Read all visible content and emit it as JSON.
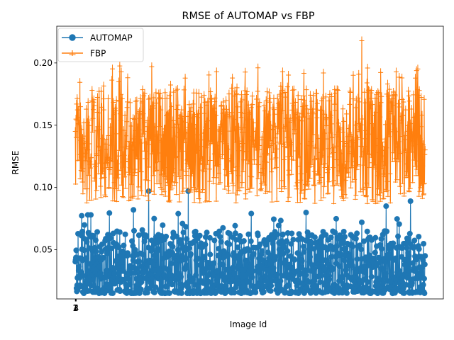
{
  "chart_data": {
    "type": "line",
    "title": "RMSE of AUTOMAP vs FBP",
    "xlabel": "Image Id",
    "ylabel": "RMSE",
    "ylim": [
      0.0105,
      0.2295
    ],
    "yticks": [
      0.05,
      0.1,
      0.15,
      0.2
    ],
    "ytick_labels": [
      "0.05",
      "0.10",
      "0.15",
      "0.20"
    ],
    "xticks": [
      1,
      2,
      3,
      4
    ],
    "xtick_labels": [
      "1",
      "2",
      "3",
      "4"
    ],
    "n_points": 1150,
    "xlim": [
      -60,
      1210
    ],
    "legend_position": "upper left",
    "grid": false,
    "colors": {
      "automap": "#1f77b4",
      "fbp": "#ff7f0e"
    },
    "series": [
      {
        "name": "AUTOMAP",
        "marker": "circle",
        "summary": {
          "typical_min": 0.015,
          "typical_max": 0.065,
          "peak": 0.097
        },
        "notable_points": [
          [
            41,
            0.078
          ],
          [
            51,
            0.078
          ],
          [
            191,
            0.082
          ],
          [
            241,
            0.097
          ],
          [
            371,
            0.097
          ],
          [
            1021,
            0.085
          ],
          [
            1101,
            0.089
          ]
        ]
      },
      {
        "name": "FBP",
        "marker": "tri",
        "summary": {
          "typical_min": 0.088,
          "typical_max": 0.18,
          "peak": 0.219
        },
        "notable_points": [
          [
            151,
            0.194
          ],
          [
            361,
            0.189
          ],
          [
            681,
            0.194
          ],
          [
            931,
            0.192
          ],
          [
            941,
            0.219
          ],
          [
            1121,
            0.195
          ]
        ]
      }
    ]
  }
}
